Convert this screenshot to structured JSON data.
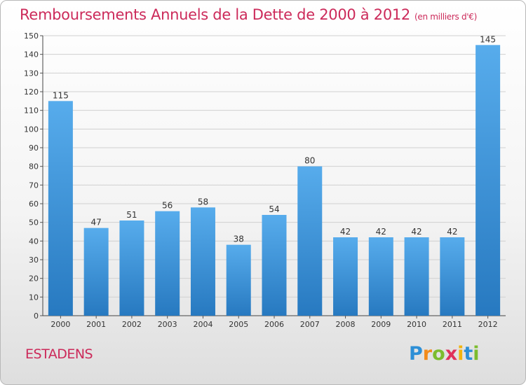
{
  "title": "Remboursements Annuels de la Dette de 2000 à 2012",
  "unit": "(en milliers d'€)",
  "commune": "ESTADENS",
  "logo": {
    "letters": [
      "P",
      "r",
      "o",
      "x",
      "i",
      "t",
      "i"
    ]
  },
  "colors": {
    "bar": "#3f9be0",
    "bar_dark": "#2a7fc6",
    "title": "#cc2a5a",
    "grid": "#d0d0d0"
  },
  "chart_data": {
    "type": "bar",
    "title": "Remboursements Annuels de la Dette de 2000 à 2012",
    "categories": [
      "2000",
      "2001",
      "2002",
      "2003",
      "2004",
      "2005",
      "2006",
      "2007",
      "2008",
      "2009",
      "2010",
      "2011",
      "2012"
    ],
    "values": [
      115,
      47,
      51,
      56,
      58,
      38,
      54,
      80,
      42,
      42,
      42,
      42,
      145
    ],
    "ylim": [
      0,
      150
    ],
    "yticks": [
      0,
      10,
      20,
      30,
      40,
      50,
      60,
      70,
      80,
      90,
      100,
      110,
      120,
      130,
      140,
      150
    ],
    "grid": true,
    "data_labels": true
  }
}
